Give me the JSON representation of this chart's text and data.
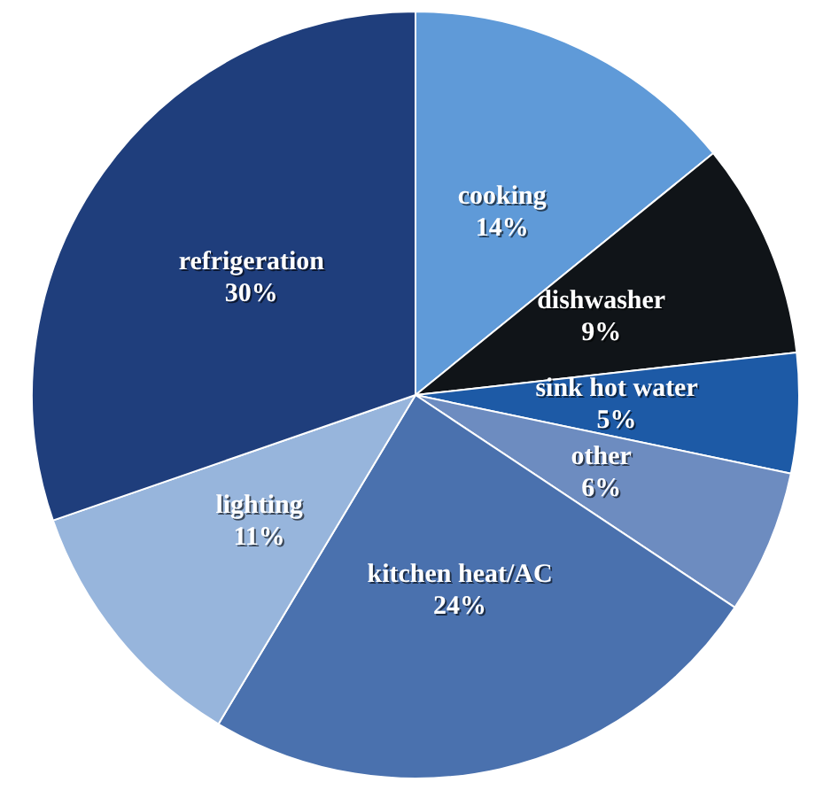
{
  "chart_data": {
    "type": "pie",
    "categories": [
      "cooking",
      "dishwasher",
      "sink hot water",
      "other",
      "kitchen heat/AC",
      "lighting",
      "refrigeration"
    ],
    "values": [
      14,
      9,
      5,
      6,
      24,
      11,
      30
    ],
    "value_labels": [
      "14%",
      "9%",
      "5%",
      "6%",
      "24%",
      "11%",
      "30%"
    ],
    "colors": [
      "#5f9ad8",
      "#101418",
      "#1d5aa6",
      "#6d8cc0",
      "#4a71ae",
      "#97b5dc",
      "#1f3e7c"
    ],
    "legend": false
  }
}
